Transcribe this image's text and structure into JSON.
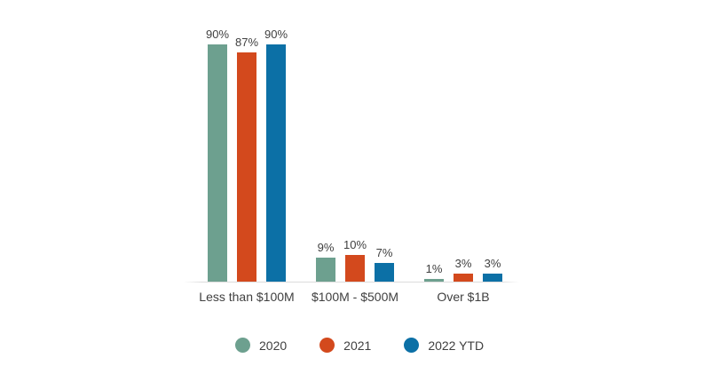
{
  "chart_data": {
    "type": "bar",
    "title": "",
    "xlabel": "",
    "ylabel": "",
    "categories": [
      "Less than $100M",
      "$100M - $500M",
      "Over $1B"
    ],
    "series": [
      {
        "name": "2020",
        "color": "#6DA08F",
        "values": [
          90,
          9,
          1
        ]
      },
      {
        "name": "2021",
        "color": "#D3491D",
        "values": [
          87,
          10,
          3
        ]
      },
      {
        "name": "2022 YTD",
        "color": "#0C70A6",
        "values": [
          90,
          7,
          3
        ]
      }
    ],
    "value_labels": [
      [
        "90%",
        "87%",
        "90%"
      ],
      [
        "9%",
        "10%",
        "7%"
      ],
      [
        "1%",
        "3%",
        "3%"
      ]
    ],
    "value_suffix": "%",
    "ylim": [
      0,
      100
    ],
    "grid": false,
    "y_axis_visible": false,
    "legend_position": "bottom",
    "colors": {
      "label_text": "#404040",
      "axis_line": "#DCDCDC",
      "background": "#FFFFFF"
    }
  }
}
